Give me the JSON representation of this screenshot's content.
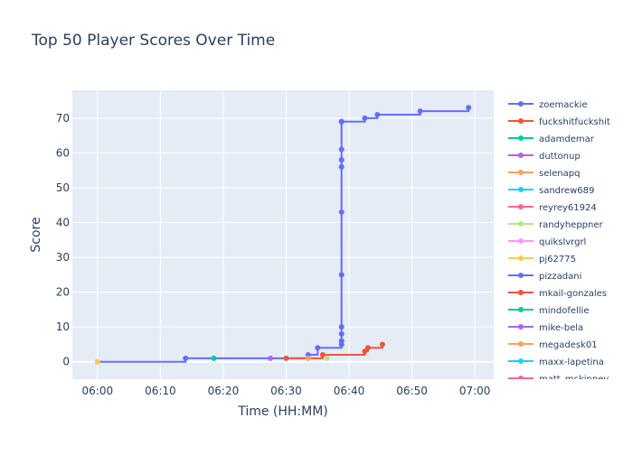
{
  "chart_data": {
    "type": "line",
    "title": "Top 50 Player Scores Over Time",
    "xlabel": "Time (HH:MM)",
    "ylabel": "Score",
    "xlim": [
      "05:56",
      "07:03"
    ],
    "ylim": [
      -5,
      78
    ],
    "x_ticks": [
      "06:00",
      "06:10",
      "06:20",
      "06:30",
      "06:40",
      "06:50",
      "07:00"
    ],
    "y_ticks": [
      0,
      10,
      20,
      30,
      40,
      50,
      60,
      70
    ],
    "line_shape": "step",
    "grid": true,
    "legend_position": "right",
    "series": [
      {
        "name": "zoemackie",
        "color": "#636efa",
        "x": [
          "06:00",
          "06:14",
          "06:33.5",
          "06:35",
          "06:38.8",
          "06:38.8",
          "06:38.8",
          "06:38.8",
          "06:38.8",
          "06:38.8",
          "06:38.8",
          "06:38.8",
          "06:38.8",
          "06:38.8",
          "06:38.8",
          "06:38.8",
          "06:42.5",
          "06:44.5",
          "06:51.3",
          "06:59"
        ],
        "y": [
          0,
          1,
          2,
          4,
          5,
          6,
          8,
          10,
          25,
          43,
          56,
          58,
          61,
          69,
          69,
          69,
          70,
          71,
          72,
          73
        ]
      },
      {
        "name": "fuckshitfuckshit",
        "color": "#ef553b",
        "x": [
          "06:30",
          "06:35.8",
          "06:42.5",
          "06:43",
          "06:45.3"
        ],
        "y": [
          1,
          2,
          3,
          4,
          5
        ]
      },
      {
        "name": "adamdemar",
        "color": "#00cc96",
        "x": [
          "06:18.5"
        ],
        "y": [
          1
        ]
      },
      {
        "name": "duttonup",
        "color": "#ab63fa",
        "x": [
          "06:27.5"
        ],
        "y": [
          1
        ]
      },
      {
        "name": "selenapq",
        "color": "#ffa15a",
        "x": [
          "06:33.5"
        ],
        "y": [
          1
        ]
      },
      {
        "name": "sandrew689",
        "color": "#19d3f3",
        "x": [],
        "y": []
      },
      {
        "name": "reyrey61924",
        "color": "#ff6692",
        "x": [],
        "y": []
      },
      {
        "name": "randyheppner",
        "color": "#b6e880",
        "x": [
          "06:36.5"
        ],
        "y": [
          1
        ]
      },
      {
        "name": "quikslvrgrl",
        "color": "#ff97ff",
        "x": [],
        "y": []
      },
      {
        "name": "pj62775",
        "color": "#fecb52",
        "x": [
          "06:00"
        ],
        "y": [
          0
        ]
      },
      {
        "name": "pizzadani",
        "color": "#636efa",
        "x": [],
        "y": []
      },
      {
        "name": "mkail-gonzales",
        "color": "#ef553b",
        "x": [],
        "y": []
      },
      {
        "name": "mindofellie",
        "color": "#00cc96",
        "x": [],
        "y": []
      },
      {
        "name": "mike-bela",
        "color": "#ab63fa",
        "x": [],
        "y": []
      },
      {
        "name": "megadesk01",
        "color": "#ffa15a",
        "x": [],
        "y": []
      },
      {
        "name": "maxx-lapetina",
        "color": "#19d3f3",
        "x": [],
        "y": []
      },
      {
        "name": "matt_mckinney",
        "color": "#ff6692",
        "x": [],
        "y": []
      }
    ]
  }
}
